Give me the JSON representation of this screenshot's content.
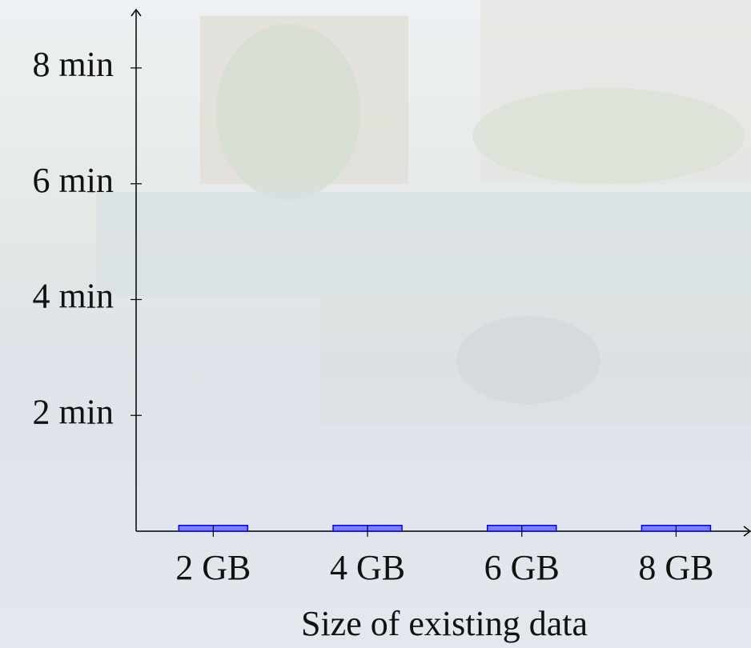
{
  "chart_data": {
    "type": "bar",
    "x_label": "Size of existing data",
    "x": [
      2,
      4,
      6,
      8
    ],
    "values": [
      0.1,
      0.1,
      0.1,
      0.1
    ],
    "color": "#8080ff",
    "xlim": [
      1,
      8.94
    ],
    "ylim": [
      0,
      8.98
    ],
    "xticks": [
      {
        "value": 2,
        "label": "2 GB"
      },
      {
        "value": 4,
        "label": "4 GB"
      },
      {
        "value": 6,
        "label": "6 GB"
      },
      {
        "value": 8,
        "label": "8 GB"
      }
    ],
    "yticks": [
      {
        "value": 2,
        "label": "2 min"
      },
      {
        "value": 4,
        "label": "4 min"
      },
      {
        "value": 6,
        "label": "6 min"
      },
      {
        "value": 8,
        "label": "8 min"
      }
    ]
  }
}
